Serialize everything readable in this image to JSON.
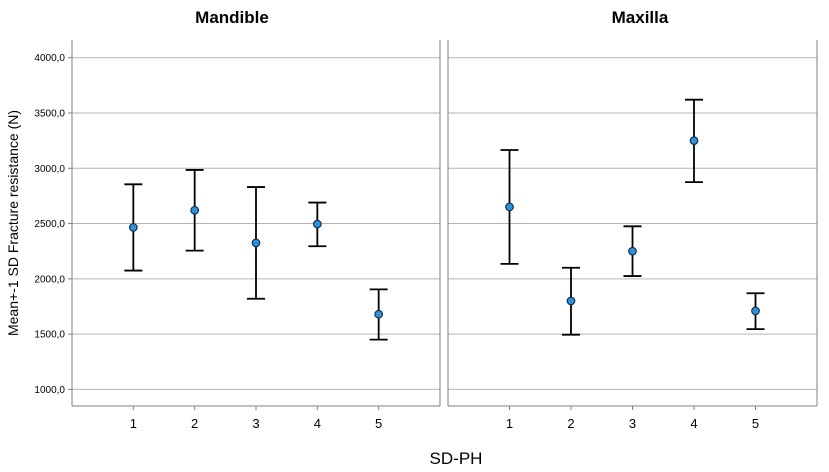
{
  "chart_data": {
    "type": "scatter",
    "subtype": "error-bar",
    "xlabel": "SD-PH",
    "ylabel": "Mean+-1 SD Fracture resistance (N)",
    "ylim": [
      850,
      4160
    ],
    "yticks": [
      1000,
      1500,
      2000,
      2500,
      3000,
      3500,
      4000
    ],
    "ytick_labels": [
      "1000,0",
      "1500,0",
      "2000,0",
      "2500,0",
      "3000,0",
      "3500,0",
      "4000,0"
    ],
    "categories": [
      "1",
      "2",
      "3",
      "4",
      "5"
    ],
    "grid": true,
    "panels": [
      {
        "title": "Mandible",
        "mean": [
          2465,
          2620,
          2325,
          2495,
          1680
        ],
        "lower": [
          2075,
          2255,
          1820,
          2295,
          1450
        ],
        "upper": [
          2855,
          2985,
          2830,
          2690,
          1905
        ]
      },
      {
        "title": "Maxilla",
        "mean": [
          2650,
          1800,
          2250,
          3250,
          1710
        ],
        "lower": [
          2135,
          1495,
          2025,
          2875,
          1545
        ],
        "upper": [
          3165,
          2100,
          2475,
          3620,
          1870
        ]
      }
    ],
    "colors": {
      "marker_fill": "#2f8fd8",
      "marker_stroke": "#0a2a4a",
      "errorbar": "#000000",
      "grid": "#b4b4b4",
      "frame": "#808080"
    }
  }
}
